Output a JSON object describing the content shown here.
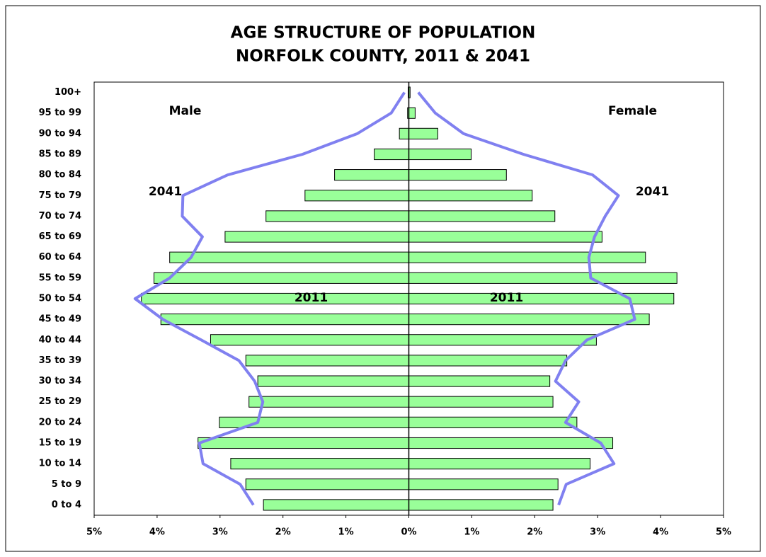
{
  "chart_data": {
    "type": "pyramid",
    "title": [
      "AGE STRUCTURE OF POPULATION",
      "NORFOLK COUNTY, 2011 & 2041"
    ],
    "categories": [
      "0 to 4",
      "5 to 9",
      "10 to 14",
      "15 to 19",
      "20 to 24",
      "25 to 29",
      "30 to 34",
      "35 to 39",
      "40 to 44",
      "45 to 49",
      "50 to 54",
      "55 to 59",
      "60 to 64",
      "65 to 69",
      "70 to 74",
      "75 to 79",
      "80 to 84",
      "85 to 89",
      "90 to 94",
      "95 to 99",
      "100+"
    ],
    "series": [
      {
        "name": "Male",
        "side": "left",
        "color": "#99ff99",
        "label": "2011",
        "values": [
          2.31,
          2.59,
          2.83,
          3.35,
          3.01,
          2.54,
          2.4,
          2.59,
          3.15,
          3.94,
          4.25,
          4.05,
          3.8,
          2.92,
          2.27,
          1.65,
          1.18,
          0.55,
          0.15,
          0.02,
          0.01
        ],
        "line": {
          "label": "2041",
          "color": "#8080f0",
          "values": [
            2.47,
            2.68,
            3.27,
            3.33,
            2.4,
            2.32,
            2.45,
            2.7,
            3.3,
            3.91,
            4.35,
            3.8,
            3.46,
            3.28,
            3.6,
            3.59,
            2.88,
            1.69,
            0.82,
            0.28,
            0.07
          ]
        }
      },
      {
        "name": "Female",
        "side": "right",
        "color": "#99ff99",
        "label": "2011",
        "values": [
          2.29,
          2.37,
          2.88,
          3.24,
          2.67,
          2.29,
          2.24,
          2.51,
          2.98,
          3.82,
          4.21,
          4.26,
          3.76,
          3.07,
          2.32,
          1.96,
          1.55,
          0.99,
          0.46,
          0.1,
          0.02
        ],
        "line": {
          "label": "2041",
          "color": "#8080f0",
          "values": [
            2.38,
            2.5,
            3.26,
            3.05,
            2.49,
            2.7,
            2.33,
            2.49,
            2.83,
            3.59,
            3.51,
            2.89,
            2.86,
            2.95,
            3.12,
            3.33,
            2.92,
            1.82,
            0.87,
            0.42,
            0.15
          ]
        }
      }
    ],
    "xlim": [
      0,
      5
    ],
    "xticks": [
      {
        "value": 0,
        "label": "0%"
      },
      {
        "value": 1,
        "label": "1%"
      },
      {
        "value": 2,
        "label": "2%"
      },
      {
        "value": 3,
        "label": "3%"
      },
      {
        "value": 4,
        "label": "4%"
      },
      {
        "value": 5,
        "label": "5%"
      }
    ]
  }
}
